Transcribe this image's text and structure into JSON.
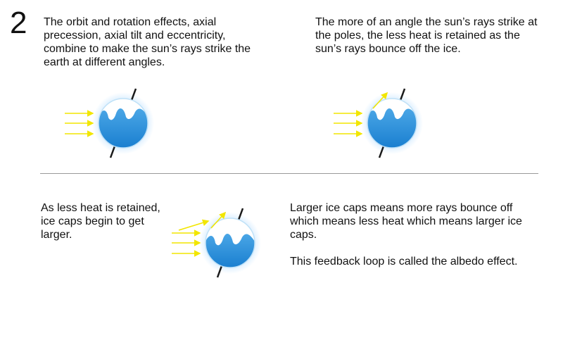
{
  "step_number": "2",
  "captions": {
    "panel1": "The orbit and rotation effects, axial precession, axial tilt and eccentricity, combine to make the sun’s rays strike the earth at different angles.",
    "panel2": "The more of an angle the sun’s rays strike at the poles, the less heat is retained as the sun’s rays bounce off the ice.",
    "panel3": "As less heat is retained, ice caps begin to get larger.",
    "panel4_line1": "Larger ice caps means more rays bounce off which means less heat which means larger ice caps.",
    "panel4_line2": "This feedback loop is called the albedo effect."
  },
  "colors": {
    "ray": "#f2e600",
    "water": "#1a7fd0",
    "ice": "#ffffff",
    "axis": "#1a1a1a",
    "glow": "#cfe9ff",
    "divider": "#9a9a9a"
  },
  "figures": [
    {
      "id": "fig1",
      "deflected_rays": 0,
      "ice_level": "small"
    },
    {
      "id": "fig2",
      "deflected_rays": 1,
      "ice_level": "small"
    },
    {
      "id": "fig3",
      "deflected_rays": 2,
      "ice_level": "large"
    }
  ]
}
